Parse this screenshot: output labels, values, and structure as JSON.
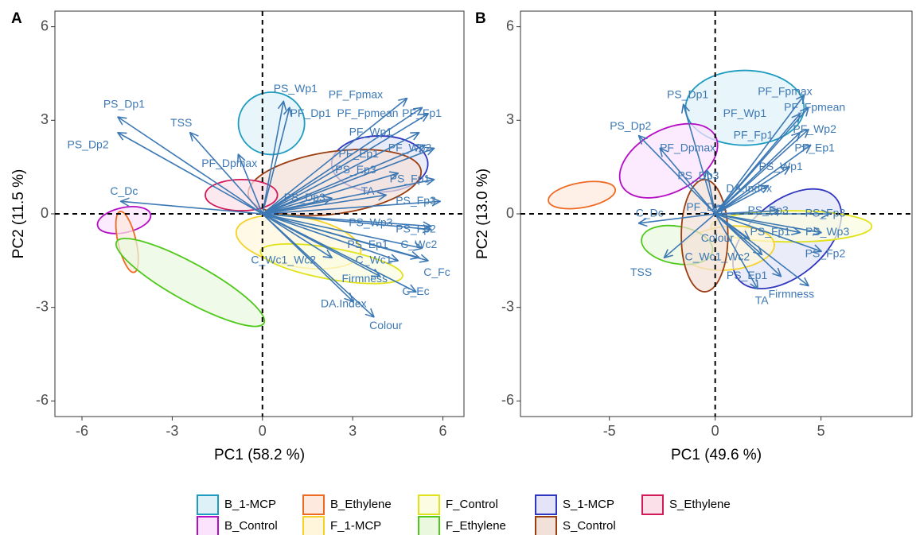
{
  "chart_data": [
    {
      "type": "scatter",
      "panel": "A",
      "xlabel": "PC1 (58.2 %)",
      "ylabel": "PC2 (11.5 %)",
      "xlim": [
        -6.9,
        6.7
      ],
      "ylim": [
        -6.5,
        6.5
      ],
      "xticks": [
        -6,
        -3,
        0,
        3,
        6
      ],
      "yticks": [
        -6,
        -3,
        0,
        3,
        6
      ],
      "grid": false,
      "reference_lines": {
        "x": 0,
        "y": 0,
        "style": "dashed"
      },
      "arrow_color": "#3c78b4",
      "loadings": [
        {
          "label": "PS_Wp1",
          "x": 0.7,
          "y": 3.6,
          "lx": 1.1,
          "ly": 4.0
        },
        {
          "label": "PS_Dp1",
          "x": -4.8,
          "y": 3.1,
          "lx": -4.6,
          "ly": 3.5
        },
        {
          "label": "TSS",
          "x": -2.4,
          "y": 2.6,
          "lx": -2.7,
          "ly": 2.9
        },
        {
          "label": "PS_Dp2",
          "x": -4.8,
          "y": 2.6,
          "lx": -5.8,
          "ly": 2.2
        },
        {
          "label": "PF_Dp1",
          "x": 0.9,
          "y": 3.4,
          "lx": 1.6,
          "ly": 3.2
        },
        {
          "label": "PF_Dpmax",
          "x": -0.8,
          "y": 1.9,
          "lx": -1.1,
          "ly": 1.6
        },
        {
          "label": "C_Dc",
          "x": -4.7,
          "y": 0.4,
          "lx": -4.6,
          "ly": 0.7
        },
        {
          "label": "PF_Fpmax",
          "x": 4.8,
          "y": 3.7,
          "lx": 3.1,
          "ly": 3.8
        },
        {
          "label": "PF_Fpmean",
          "x": 5.3,
          "y": 3.4,
          "lx": 3.5,
          "ly": 3.2
        },
        {
          "label": "PF_Fp1",
          "x": 5.5,
          "y": 3.2,
          "lx": 5.3,
          "ly": 3.2
        },
        {
          "label": "PF_Wp1",
          "x": 5.2,
          "y": 2.6,
          "lx": 3.6,
          "ly": 2.6
        },
        {
          "label": "PF_Ep1",
          "x": 5.4,
          "y": 2.2,
          "lx": 3.2,
          "ly": 1.9
        },
        {
          "label": "PF_Wp2",
          "x": 5.7,
          "y": 2.1,
          "lx": 4.9,
          "ly": 2.1
        },
        {
          "label": "PS_Ep3",
          "x": 4.5,
          "y": 1.3,
          "lx": 3.1,
          "ly": 1.4
        },
        {
          "label": "PS_Fp1",
          "x": 5.7,
          "y": 1.1,
          "lx": 4.9,
          "ly": 1.1
        },
        {
          "label": "PS_Dp3",
          "x": 2.3,
          "y": 0.5,
          "lx": 1.4,
          "ly": 0.5
        },
        {
          "label": "TA",
          "x": 4.1,
          "y": 0.6,
          "lx": 3.5,
          "ly": 0.7
        },
        {
          "label": "PS_Fp3",
          "x": 5.9,
          "y": 0.4,
          "lx": 5.1,
          "ly": 0.4
        },
        {
          "label": "PS_Wp3",
          "x": 5.6,
          "y": -0.4,
          "lx": 3.6,
          "ly": -0.3
        },
        {
          "label": "PS_Fp2",
          "x": 5.6,
          "y": -0.5,
          "lx": 5.1,
          "ly": -0.5
        },
        {
          "label": "PS_Ep1",
          "x": 5.3,
          "y": -1.1,
          "lx": 3.5,
          "ly": -1.0
        },
        {
          "label": "C_Wc2",
          "x": 5.2,
          "y": -1.4,
          "lx": 5.2,
          "ly": -1.0
        },
        {
          "label": "C_Wc1_Wc2",
          "x": 2.3,
          "y": -1.4,
          "lx": 0.7,
          "ly": -1.5
        },
        {
          "label": "C_Wc1",
          "x": 4.5,
          "y": -1.5,
          "lx": 3.7,
          "ly": -1.5
        },
        {
          "label": "C_Fc",
          "x": 5.5,
          "y": -1.5,
          "lx": 5.8,
          "ly": -1.9
        },
        {
          "label": "Firmness",
          "x": 3.9,
          "y": -2.0,
          "lx": 3.4,
          "ly": -2.1
        },
        {
          "label": "C_Ec",
          "x": 5.1,
          "y": -2.5,
          "lx": 5.1,
          "ly": -2.5
        },
        {
          "label": "DA.Index",
          "x": 3.0,
          "y": -2.8,
          "lx": 2.7,
          "ly": -2.9
        },
        {
          "label": "Colour",
          "x": 3.7,
          "y": -3.3,
          "lx": 4.1,
          "ly": -3.6
        }
      ],
      "ellipses": [
        {
          "group": "B_1-MCP",
          "cx": 0.3,
          "cy": 2.9,
          "rx": 1.1,
          "ry": 1.0,
          "angle": 0
        },
        {
          "group": "S_1-MCP",
          "cx": 3.9,
          "cy": 1.6,
          "rx": 1.6,
          "ry": 0.9,
          "angle": 0
        },
        {
          "group": "S_Control",
          "cx": 2.4,
          "cy": 1.0,
          "rx": 2.9,
          "ry": 1.0,
          "angle": 8
        },
        {
          "group": "S_Ethylene",
          "cx": -0.7,
          "cy": 0.6,
          "rx": 1.2,
          "ry": 0.5,
          "angle": 0
        },
        {
          "group": "B_Control",
          "cx": -4.6,
          "cy": -0.2,
          "rx": 0.9,
          "ry": 0.4,
          "angle": 12
        },
        {
          "group": "B_Ethylene",
          "cx": -4.5,
          "cy": -0.9,
          "rx": 0.3,
          "ry": 1.0,
          "angle": 13
        },
        {
          "group": "F_Ethylene",
          "cx": -2.4,
          "cy": -2.2,
          "rx": 2.8,
          "ry": 0.6,
          "angle": -29
        },
        {
          "group": "F_1-MCP",
          "cx": 1.2,
          "cy": -0.9,
          "rx": 2.1,
          "ry": 0.8,
          "angle": -10
        },
        {
          "group": "F_Control",
          "cx": 2.3,
          "cy": -1.6,
          "rx": 2.4,
          "ry": 0.5,
          "angle": -10
        }
      ]
    },
    {
      "type": "scatter",
      "panel": "B",
      "xlabel": "PC1 (49.6 %)",
      "ylabel": "PC2 (13.0 %)",
      "xlim": [
        -9.2,
        9.3
      ],
      "ylim": [
        -6.5,
        6.5
      ],
      "xticks": [
        -5,
        0,
        5
      ],
      "yticks": [
        -6,
        -3,
        0,
        3,
        6
      ],
      "grid": false,
      "reference_lines": {
        "x": 0,
        "y": 0,
        "style": "dashed"
      },
      "arrow_color": "#3c78b4",
      "loadings": [
        {
          "label": "PS_Dp1",
          "x": -1.5,
          "y": 3.5,
          "lx": -1.3,
          "ly": 3.8
        },
        {
          "label": "PS_Dp2",
          "x": -3.6,
          "y": 2.5,
          "lx": -4.0,
          "ly": 2.8
        },
        {
          "label": "PF_Dpmax",
          "x": -2.6,
          "y": 2.1,
          "lx": -1.3,
          "ly": 2.1
        },
        {
          "label": "PS_Dp3",
          "x": -0.4,
          "y": 1.4,
          "lx": -0.8,
          "ly": 1.2
        },
        {
          "label": "PF_Fpmax",
          "x": 4.2,
          "y": 3.8,
          "lx": 3.3,
          "ly": 3.9
        },
        {
          "label": "PF_Fpmean",
          "x": 4.4,
          "y": 3.4,
          "lx": 4.7,
          "ly": 3.4
        },
        {
          "label": "PF_Wp1",
          "x": 4.0,
          "y": 3.2,
          "lx": 1.4,
          "ly": 3.2
        },
        {
          "label": "PF_Wp2",
          "x": 4.4,
          "y": 2.7,
          "lx": 4.7,
          "ly": 2.7
        },
        {
          "label": "PF_Fp1",
          "x": 4.0,
          "y": 2.6,
          "lx": 1.8,
          "ly": 2.5
        },
        {
          "label": "PF_Ep1",
          "x": 4.5,
          "y": 2.2,
          "lx": 4.7,
          "ly": 2.1
        },
        {
          "label": "PS_Wp1",
          "x": 3.5,
          "y": 1.5,
          "lx": 3.1,
          "ly": 1.5
        },
        {
          "label": "DA.Index",
          "x": 2.5,
          "y": 0.9,
          "lx": 1.6,
          "ly": 0.8
        },
        {
          "label": "PF_Dp1",
          "x": 0.4,
          "y": 0.3,
          "lx": -0.4,
          "ly": 0.2
        },
        {
          "label": "PS_Fp3",
          "x": 5.4,
          "y": 0.0,
          "lx": 5.2,
          "ly": 0.0
        },
        {
          "label": "PS_Ep3",
          "x": 3.0,
          "y": 0.1,
          "lx": 2.5,
          "ly": 0.1
        },
        {
          "label": "C_Dc",
          "x": -3.6,
          "y": -0.3,
          "lx": -3.1,
          "ly": 0.0
        },
        {
          "label": "Colour",
          "x": 1.6,
          "y": -0.8,
          "lx": 0.1,
          "ly": -0.8
        },
        {
          "label": "PS_Fp1",
          "x": 4.0,
          "y": -0.6,
          "lx": 2.6,
          "ly": -0.6
        },
        {
          "label": "PS_Wp3",
          "x": 5.0,
          "y": -0.6,
          "lx": 5.3,
          "ly": -0.6
        },
        {
          "label": "C_Wc1_Wc2",
          "x": 2.2,
          "y": -1.3,
          "lx": 0.1,
          "ly": -1.4
        },
        {
          "label": "PS_Fp2",
          "x": 5.0,
          "y": -1.2,
          "lx": 5.2,
          "ly": -1.3
        },
        {
          "label": "TSS",
          "x": -2.4,
          "y": -1.4,
          "lx": -3.5,
          "ly": -1.9
        },
        {
          "label": "PS_Ep1",
          "x": 3.1,
          "y": -2.0,
          "lx": 1.5,
          "ly": -2.0
        },
        {
          "label": "TA",
          "x": 2.0,
          "y": -2.4,
          "lx": 2.2,
          "ly": -2.8
        },
        {
          "label": "Firmness",
          "x": 4.4,
          "y": -2.3,
          "lx": 3.6,
          "ly": -2.6
        }
      ],
      "ellipses": [
        {
          "group": "B_1-MCP",
          "cx": 1.4,
          "cy": 3.4,
          "rx": 2.8,
          "ry": 1.2,
          "angle": 0
        },
        {
          "group": "B_Control",
          "cx": -2.2,
          "cy": 1.7,
          "rx": 2.5,
          "ry": 1.0,
          "angle": 28
        },
        {
          "group": "B_Ethylene",
          "cx": -6.3,
          "cy": 0.6,
          "rx": 1.6,
          "ry": 0.4,
          "angle": 10
        },
        {
          "group": "S_1-MCP",
          "cx": 3.4,
          "cy": -0.8,
          "rx": 3.0,
          "ry": 1.2,
          "angle": 40
        },
        {
          "group": "F_Control",
          "cx": 3.6,
          "cy": -0.4,
          "rx": 3.8,
          "ry": 0.5,
          "angle": 0
        },
        {
          "group": "F_1-MCP",
          "cx": 0.6,
          "cy": -1.1,
          "rx": 2.2,
          "ry": 0.7,
          "angle": 5
        },
        {
          "group": "F_Ethylene",
          "cx": -1.8,
          "cy": -1.0,
          "rx": 1.7,
          "ry": 0.6,
          "angle": -10
        },
        {
          "group": "S_Control",
          "cx": -0.5,
          "cy": -0.7,
          "rx": 1.1,
          "ry": 1.8,
          "angle": 0
        }
      ]
    }
  ],
  "legend": {
    "placement": "bottom",
    "items": [
      {
        "name": "B_1-MCP",
        "stroke": "#1d9bc0",
        "fill": "#dff1f8"
      },
      {
        "name": "B_Control",
        "stroke": "#b40ec4",
        "fill": "#fbe3fd"
      },
      {
        "name": "B_Ethylene",
        "stroke": "#ee6a22",
        "fill": "#fde9de"
      },
      {
        "name": "F_1-MCP",
        "stroke": "#f4d229",
        "fill": "#fff6dc"
      },
      {
        "name": "F_Control",
        "stroke": "#e0e21b",
        "fill": "#fbfce1"
      },
      {
        "name": "F_Ethylene",
        "stroke": "#4ec91a",
        "fill": "#e9f8df"
      },
      {
        "name": "S_1-MCP",
        "stroke": "#2f36bf",
        "fill": "#e3e4f8"
      },
      {
        "name": "S_Control",
        "stroke": "#9a3d10",
        "fill": "#f2e1d9"
      },
      {
        "name": "S_Ethylene",
        "stroke": "#d11a5a",
        "fill": "#fbe0ea"
      }
    ]
  }
}
